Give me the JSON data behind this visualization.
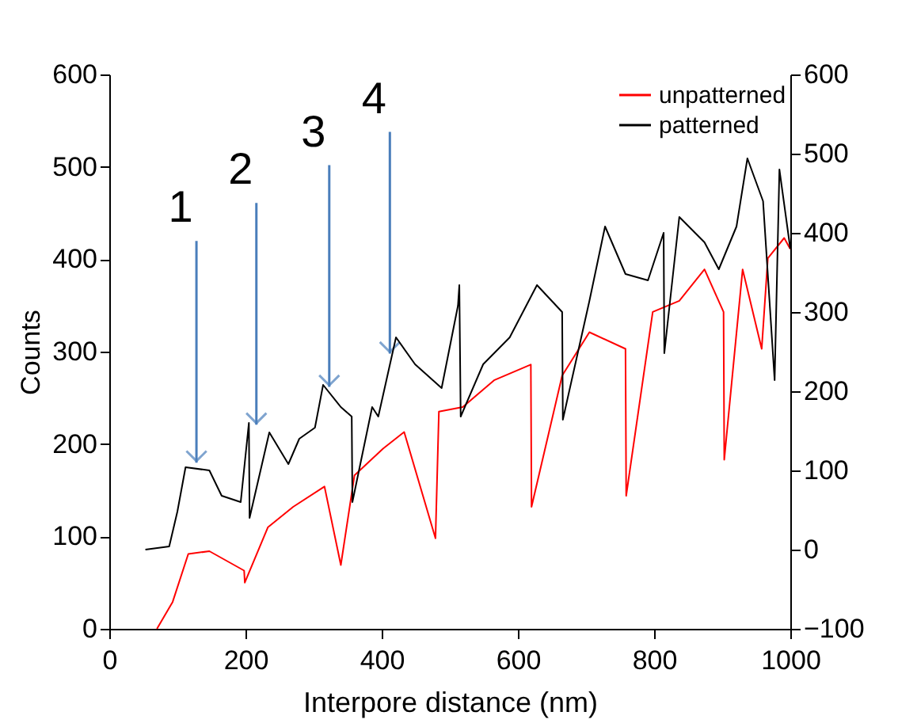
{
  "chart_data": {
    "type": "line",
    "xlabel": "Interpore distance (nm)",
    "ylabel": "Counts",
    "xlim": [
      0,
      1000
    ],
    "xticks": [
      0,
      200,
      400,
      600,
      800,
      {
        "value": 1000,
        "label": "1000"
      }
    ],
    "ylim": [
      0,
      600
    ],
    "yticks": [
      0,
      100,
      200,
      300,
      400,
      500,
      600
    ],
    "y2lim": [
      -100,
      600
    ],
    "y2ticks": [
      -100,
      0,
      100,
      200,
      300,
      400,
      500,
      600
    ],
    "grid": false,
    "legend": "top right",
    "line_style": "solid",
    "marker": "none",
    "series": [
      {
        "name": "unpatterned",
        "color": "#ff0000",
        "axis": "y",
        "x": [
          70,
          93,
          116,
          147,
          198,
          199,
          233,
          270,
          316,
          340,
          360,
          402,
          433,
          479,
          484,
          519,
          565,
          619,
          620,
          665,
          705,
          758,
          759,
          798,
          837,
          874,
          902,
          903,
          930,
          958,
          967,
          991,
          1000
        ],
        "values": [
          0,
          29,
          81,
          84,
          63,
          50,
          110,
          132,
          154,
          69,
          166,
          195,
          213,
          98,
          235,
          240,
          269,
          286,
          132,
          274,
          321,
          303,
          144,
          343,
          355,
          389,
          343,
          183,
          389,
          303,
          401,
          423,
          411
        ]
      },
      {
        "name": "patterned",
        "color": "#000000",
        "axis": "y2",
        "x": [
          53,
          88,
          100,
          112,
          147,
          165,
          193,
          205,
          206,
          235,
          263,
          279,
          302,
          314,
          340,
          356,
          357,
          386,
          395,
          421,
          449,
          488,
          512,
          514,
          516,
          549,
          588,
          628,
          665,
          666,
          705,
          728,
          758,
          791,
          814,
          815,
          837,
          874,
          895,
          921,
          937,
          960,
          977,
          984,
          1000
        ],
        "values": [
          0,
          4,
          48,
          104,
          100,
          68,
          60,
          160,
          40,
          148,
          108,
          140,
          154,
          208,
          180,
          168,
          60,
          180,
          168,
          268,
          234,
          204,
          308,
          334,
          168,
          234,
          268,
          334,
          300,
          164,
          314,
          408,
          348,
          340,
          400,
          248,
          420,
          388,
          354,
          408,
          494,
          440,
          214,
          480,
          380
        ]
      }
    ],
    "annotations": [
      {
        "text": "1",
        "x": 128,
        "y": 173
      },
      {
        "text": "2",
        "x": 216,
        "y": 214
      },
      {
        "text": "3",
        "x": 323,
        "y": 255
      },
      {
        "text": "4",
        "x": 412,
        "y": 291
      }
    ]
  }
}
